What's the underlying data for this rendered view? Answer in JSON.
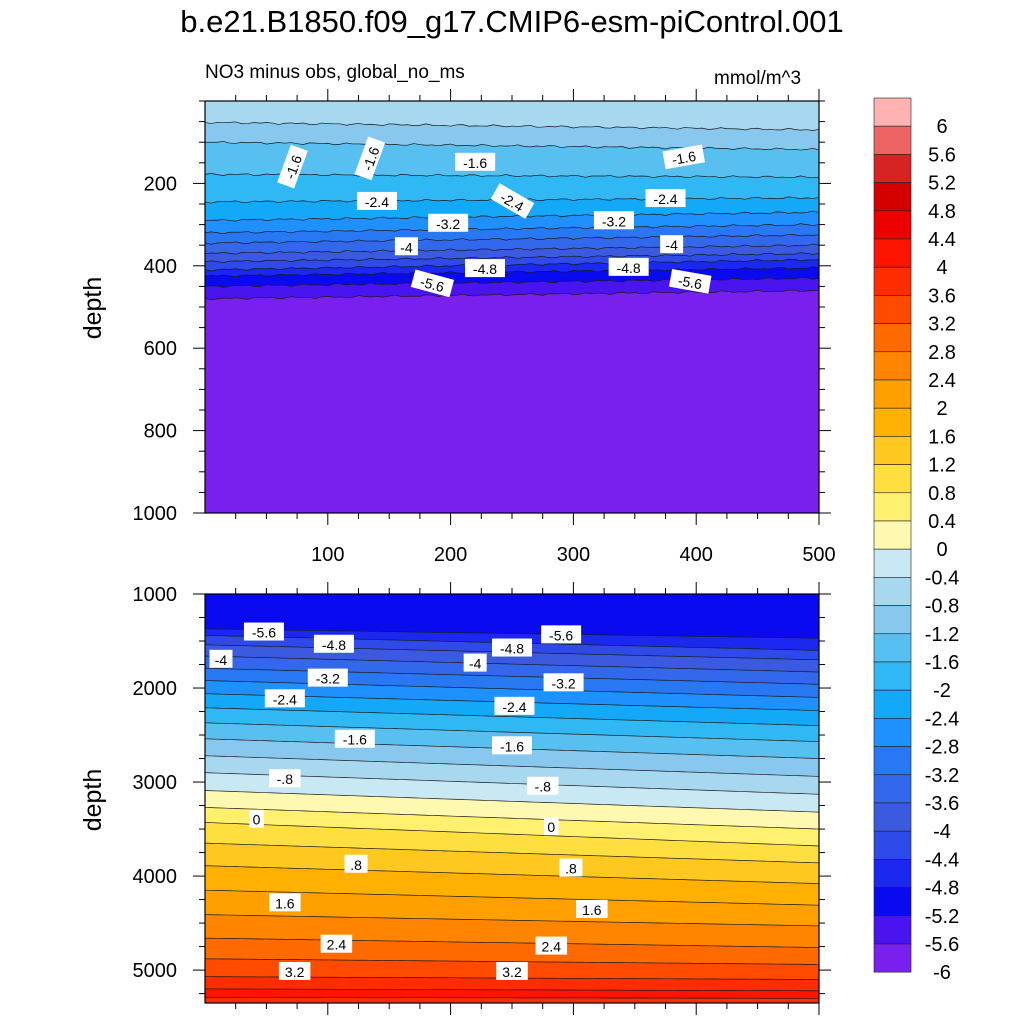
{
  "chart_data": [
    {
      "type": "contour",
      "title": "b.e21.B1850.f09_g17.CMIP6-esm-piControl.001",
      "subtitle": "NO3 minus obs, global_no_ms",
      "units": "mmol/m^3",
      "xlabel": "",
      "ylabel": "depth",
      "xlim": [
        0,
        500
      ],
      "ylim": [
        1000,
        0
      ],
      "x_ticks": [
        100,
        200,
        300,
        400,
        500
      ],
      "y_ticks": [
        200,
        400,
        600,
        800,
        1000
      ],
      "boundaries": [
        {
          "level": -1.2,
          "depth_start": 52,
          "depth_end": 70
        },
        {
          "level": -1.6,
          "depth_start": 100,
          "depth_end": 118
        },
        {
          "level": -2.0,
          "depth_start": 178,
          "depth_end": 185
        },
        {
          "level": -2.4,
          "depth_start": 245,
          "depth_end": 235
        },
        {
          "level": -2.8,
          "depth_start": 290,
          "depth_end": 270
        },
        {
          "level": -3.2,
          "depth_start": 320,
          "depth_end": 300
        },
        {
          "level": -3.6,
          "depth_start": 345,
          "depth_end": 325
        },
        {
          "level": -4.0,
          "depth_start": 370,
          "depth_end": 350
        },
        {
          "level": -4.4,
          "depth_start": 390,
          "depth_end": 370
        },
        {
          "level": -4.8,
          "depth_start": 410,
          "depth_end": 385
        },
        {
          "level": -5.2,
          "depth_start": 425,
          "depth_end": 405
        },
        {
          "level": -5.6,
          "depth_start": 450,
          "depth_end": 430
        },
        {
          "level": -6.0,
          "depth_start": 480,
          "depth_end": 460
        }
      ],
      "contour_labels": [
        {
          "text": "-1.6",
          "x": 72,
          "depth": 160,
          "angle": -70
        },
        {
          "text": "-1.6",
          "x": 135,
          "depth": 140,
          "angle": -70
        },
        {
          "text": "-1.6",
          "x": 220,
          "depth": 150,
          "angle": 0
        },
        {
          "text": "-1.6",
          "x": 390,
          "depth": 138,
          "angle": -10
        },
        {
          "text": "-2.4",
          "x": 140,
          "depth": 245,
          "angle": 0
        },
        {
          "text": "-2.4",
          "x": 250,
          "depth": 245,
          "angle": 30
        },
        {
          "text": "-2.4",
          "x": 375,
          "depth": 238,
          "angle": 0
        },
        {
          "text": "-3.2",
          "x": 198,
          "depth": 298,
          "angle": 0
        },
        {
          "text": "-3.2",
          "x": 333,
          "depth": 292,
          "angle": 0
        },
        {
          "text": "-4",
          "x": 164,
          "depth": 355,
          "angle": 0
        },
        {
          "text": "-4",
          "x": 380,
          "depth": 350,
          "angle": 0
        },
        {
          "text": "-4.8",
          "x": 228,
          "depth": 408,
          "angle": 0
        },
        {
          "text": "-4.8",
          "x": 345,
          "depth": 405,
          "angle": 0
        },
        {
          "text": "-5.6",
          "x": 185,
          "depth": 445,
          "angle": 15
        },
        {
          "text": "-5.6",
          "x": 395,
          "depth": 440,
          "angle": 10
        }
      ]
    },
    {
      "type": "contour",
      "xlabel": "",
      "ylabel": "depth",
      "xlim": [
        0,
        500
      ],
      "ylim": [
        5350,
        1000
      ],
      "y_ticks": [
        1000,
        2000,
        3000,
        4000,
        5000
      ],
      "boundaries": [
        {
          "level": -5.6,
          "depth_start": 1370,
          "depth_end": 1470
        },
        {
          "level": -5.2,
          "depth_start": 1440,
          "depth_end": 1600
        },
        {
          "level": -4.8,
          "depth_start": 1540,
          "depth_end": 1700
        },
        {
          "level": -4.4,
          "depth_start": 1660,
          "depth_end": 1830
        },
        {
          "level": -4.0,
          "depth_start": 1790,
          "depth_end": 1960
        },
        {
          "level": -3.6,
          "depth_start": 1920,
          "depth_end": 2100
        },
        {
          "level": -3.2,
          "depth_start": 2060,
          "depth_end": 2240
        },
        {
          "level": -2.8,
          "depth_start": 2210,
          "depth_end": 2400
        },
        {
          "level": -2.4,
          "depth_start": 2370,
          "depth_end": 2570
        },
        {
          "level": -2.0,
          "depth_start": 2540,
          "depth_end": 2750
        },
        {
          "level": -1.6,
          "depth_start": 2720,
          "depth_end": 2940
        },
        {
          "level": -1.2,
          "depth_start": 2900,
          "depth_end": 3130
        },
        {
          "level": -0.8,
          "depth_start": 3090,
          "depth_end": 3320
        },
        {
          "level": -0.4,
          "depth_start": 3270,
          "depth_end": 3500
        },
        {
          "level": 0.0,
          "depth_start": 3430,
          "depth_end": 3680
        },
        {
          "level": 0.4,
          "depth_start": 3650,
          "depth_end": 3860
        },
        {
          "level": 0.8,
          "depth_start": 3890,
          "depth_end": 4080
        },
        {
          "level": 1.2,
          "depth_start": 4150,
          "depth_end": 4310
        },
        {
          "level": 1.6,
          "depth_start": 4410,
          "depth_end": 4530
        },
        {
          "level": 2.0,
          "depth_start": 4660,
          "depth_end": 4760
        },
        {
          "level": 2.4,
          "depth_start": 4880,
          "depth_end": 4940
        },
        {
          "level": 2.8,
          "depth_start": 5070,
          "depth_end": 5100
        },
        {
          "level": 3.2,
          "depth_start": 5200,
          "depth_end": 5220
        },
        {
          "level": 3.6,
          "depth_start": 5290,
          "depth_end": 5300
        }
      ],
      "contour_labels": [
        {
          "text": "-5.6",
          "x": 48,
          "depth": 1410,
          "angle": 0
        },
        {
          "text": "-5.6",
          "x": 290,
          "depth": 1440,
          "angle": 0
        },
        {
          "text": "-4.8",
          "x": 105,
          "depth": 1540,
          "angle": 0
        },
        {
          "text": "-4.8",
          "x": 250,
          "depth": 1580,
          "angle": 0
        },
        {
          "text": "-4",
          "x": 13,
          "depth": 1700,
          "angle": 0
        },
        {
          "text": "-4",
          "x": 220,
          "depth": 1740,
          "angle": 0
        },
        {
          "text": "-3.2",
          "x": 100,
          "depth": 1900,
          "angle": 0
        },
        {
          "text": "-3.2",
          "x": 292,
          "depth": 1950,
          "angle": 0
        },
        {
          "text": "-2.4",
          "x": 65,
          "depth": 2120,
          "angle": 0
        },
        {
          "text": "-2.4",
          "x": 252,
          "depth": 2200,
          "angle": 0
        },
        {
          "text": "-1.6",
          "x": 122,
          "depth": 2550,
          "angle": 0
        },
        {
          "text": "-1.6",
          "x": 250,
          "depth": 2620,
          "angle": 0
        },
        {
          "text": "-.8",
          "x": 65,
          "depth": 2970,
          "angle": 0
        },
        {
          "text": "-.8",
          "x": 275,
          "depth": 3050,
          "angle": 0
        },
        {
          "text": "0",
          "x": 42,
          "depth": 3400,
          "angle": 0
        },
        {
          "text": "0",
          "x": 282,
          "depth": 3480,
          "angle": 0
        },
        {
          "text": ".8",
          "x": 123,
          "depth": 3880,
          "angle": 0
        },
        {
          "text": ".8",
          "x": 298,
          "depth": 3920,
          "angle": 0
        },
        {
          "text": "1.6",
          "x": 65,
          "depth": 4290,
          "angle": 0
        },
        {
          "text": "1.6",
          "x": 315,
          "depth": 4360,
          "angle": 0
        },
        {
          "text": "2.4",
          "x": 107,
          "depth": 4730,
          "angle": 0
        },
        {
          "text": "2.4",
          "x": 282,
          "depth": 4750,
          "angle": 0
        },
        {
          "text": "3.2",
          "x": 73,
          "depth": 5020,
          "angle": 0
        },
        {
          "text": "3.2",
          "x": 250,
          "depth": 5020,
          "angle": 0
        }
      ]
    }
  ],
  "colorbar": {
    "labels": [
      "6",
      "5.6",
      "5.2",
      "4.8",
      "4.4",
      "4",
      "3.6",
      "3.2",
      "2.8",
      "2.4",
      "2",
      "1.6",
      "1.2",
      "0.8",
      "0.4",
      "0",
      "-0.4",
      "-0.8",
      "-1.2",
      "-1.6",
      "-2",
      "-2.4",
      "-2.8",
      "-3.2",
      "-3.6",
      "-4",
      "-4.4",
      "-4.8",
      "-5.2",
      "-5.6",
      "-6"
    ],
    "colors": [
      "#ffb2b2",
      "#ee6464",
      "#d62424",
      "#d40000",
      "#ec0000",
      "#ff1400",
      "#ff2c00",
      "#ff4a00",
      "#ff6a00",
      "#ff8400",
      "#ffa000",
      "#ffb000",
      "#ffc820",
      "#ffdf40",
      "#fff070",
      "#fff8b0",
      "#c8e8f4",
      "#a8d8f0",
      "#88c8ee",
      "#58c0f0",
      "#30b8f4",
      "#14a8f8",
      "#1e90ff",
      "#2878f4",
      "#3468ec",
      "#3c5ae0",
      "#2e4ae8",
      "#1a28f0",
      "#0a0af0",
      "#4a14f0",
      "#7a20ee"
    ]
  }
}
